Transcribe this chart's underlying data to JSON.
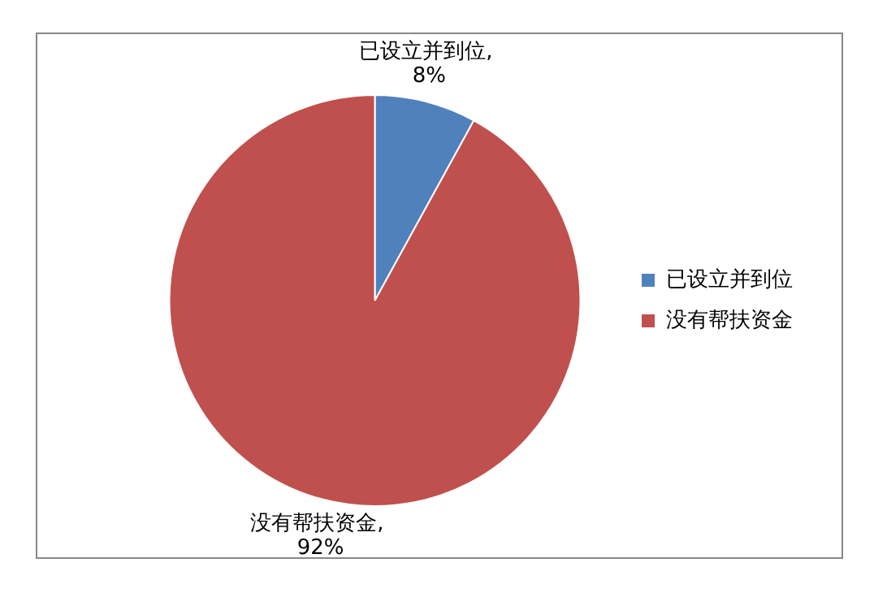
{
  "chart_data": {
    "type": "pie",
    "categories": [
      "已设立并到位",
      "没有帮扶资金"
    ],
    "values": [
      8,
      92
    ],
    "colors": [
      "#4f81bd",
      "#c0504d"
    ],
    "value_labels": [
      "已设立并到位, 8%",
      "没有帮扶资金, 92%"
    ],
    "legend": "right"
  }
}
